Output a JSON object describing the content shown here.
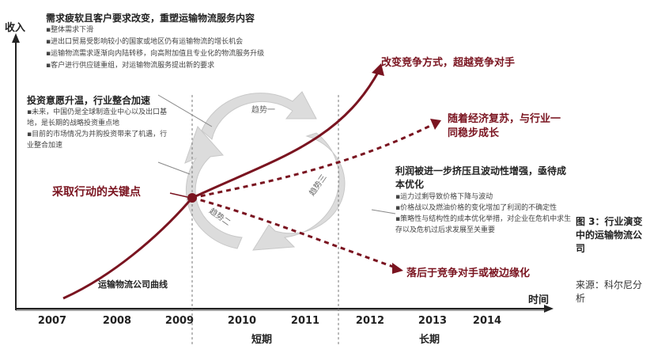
{
  "axis": {
    "y_label": "收入",
    "x_label": "时间",
    "years": [
      "2007",
      "2008",
      "2009",
      "2010",
      "2011",
      "2012",
      "2013",
      "2014"
    ],
    "short_term_label": "短期",
    "long_term_label": "长期"
  },
  "box1": {
    "title": "需求疲软且客户要求改变，重塑运输物流服务内容",
    "items": [
      "整体需求下滑",
      "进出口贸易受影响较小的国家或地区仍有运输物流的增长机会",
      "运输物流需求逐渐向内陆转移，向高附加值且专业化的物流服务升级",
      "客户进行供应链重组，对运输物流服务提出新的要求"
    ]
  },
  "box2": {
    "title": "投资意愿升温，行业整合加速",
    "items": [
      "未来，中国仍是全球制造业中心以及出口基地，是长期的战略投资重点地",
      "目前的市场情况为并购投资带来了机遇，行业整合加速"
    ]
  },
  "box3": {
    "title": "利润被进一步挤压且波动性增强，亟待成本优化",
    "items": [
      "运力过剩导致价格下降与波动",
      "价格战以及燃油价格的变化增加了利润的不确定性",
      "策略性与结构性的成本优化举措，对企业在危机中求生存以及危机过后求发展至关重要"
    ]
  },
  "labels": {
    "key_point": "采取行动的关键点",
    "company_curve": "运输物流公司曲线",
    "outcome_top": "改变竞争方式，超越竞争对手",
    "outcome_mid": "随着经济复苏，与行业一同稳步成长",
    "outcome_low": "落后于竞争对手或被边缘化",
    "cycle_top": "趋势一",
    "cycle_left": "趋势二",
    "cycle_right": "趋势三"
  },
  "caption": {
    "figure": "图 3：行业演变中的运输物流公司",
    "source": "来源：科尔尼分析"
  },
  "colors": {
    "dark_red": "#7a1420",
    "cycle_gray": "#d9d9d9"
  }
}
